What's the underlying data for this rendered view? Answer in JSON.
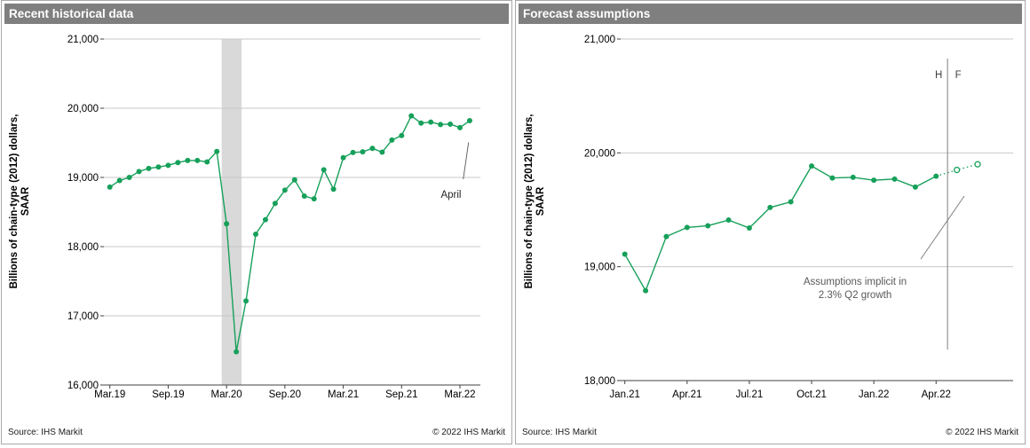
{
  "panels": {
    "left": {
      "title": "Recent historical data",
      "footer": {
        "source": "Source:  IHS Markit",
        "copyright": "© 2022  IHS Markit"
      }
    },
    "right": {
      "title": "Forecast assumptions",
      "footer": {
        "source": "Source:  IHS Markit",
        "copyright": "© 2022  IHS Markit"
      }
    }
  },
  "colors": {
    "header_bg": "#7f7f7f",
    "header_text": "#ffffff",
    "series_green": "#16a05a",
    "grid": "#c8c8c8",
    "axis": "#404040",
    "recession_band": "#d9d9d9",
    "annotation_gray": "#595959",
    "divider_gray": "#808080",
    "panel_border": "#a9a9a9"
  },
  "chart_data": [
    {
      "id": "historical",
      "type": "line",
      "title": "Recent historical data",
      "ylabel_line1": "Billions of chain-type (2012)  dollars,",
      "ylabel_line2": "SAAR",
      "ylim": [
        16000,
        21000
      ],
      "grid": true,
      "y_ticks": [
        16000,
        17000,
        18000,
        19000,
        20000,
        21000
      ],
      "y_tick_labels": [
        "16,000",
        "17,000",
        "18,000",
        "19,000",
        "20,000",
        "21,000"
      ],
      "x_tick_labels": [
        "Mar.19",
        "Sep.19",
        "Mar.20",
        "Sep.20",
        "Mar.21",
        "Sep.21",
        "Mar.22"
      ],
      "x_tick_month_indices": [
        0,
        6,
        12,
        18,
        24,
        30,
        36
      ],
      "x_months": [
        "Mar.19",
        "Apr.19",
        "May.19",
        "Jun.19",
        "Jul.19",
        "Aug.19",
        "Sep.19",
        "Oct.19",
        "Nov.19",
        "Dec.19",
        "Jan.20",
        "Feb.20",
        "Mar.20",
        "Apr.20",
        "May.20",
        "Jun.20",
        "Jul.20",
        "Aug.20",
        "Sep.20",
        "Oct.20",
        "Nov.20",
        "Dec.20",
        "Jan.21",
        "Feb.21",
        "Mar.21",
        "Apr.21",
        "May.21",
        "Jun.21",
        "Jul.21",
        "Aug.21",
        "Sep.21",
        "Oct.21",
        "Nov.21",
        "Dec.21",
        "Jan.22",
        "Feb.22",
        "Mar.22",
        "Apr.22"
      ],
      "values": [
        18860,
        18955,
        19000,
        19085,
        19130,
        19150,
        19175,
        19215,
        19245,
        19245,
        19225,
        19375,
        18330,
        16480,
        17215,
        18180,
        18390,
        18625,
        18815,
        18965,
        18730,
        18690,
        19110,
        18830,
        19285,
        19360,
        19370,
        19420,
        19365,
        19540,
        19605,
        19890,
        19785,
        19800,
        19765,
        19770,
        19720,
        19820
      ],
      "recession_band": {
        "start_month": 11.5,
        "end_month": 13.55
      },
      "annotation": {
        "text": "April"
      }
    },
    {
      "id": "forecast",
      "type": "line",
      "title": "Forecast assumptions",
      "ylabel_line1": "Billions of chain-type (2012)  dollars,",
      "ylabel_line2": "SAAR",
      "ylim": [
        18000,
        21000
      ],
      "grid": true,
      "y_ticks": [
        18000,
        19000,
        20000,
        21000
      ],
      "y_tick_labels": [
        "18,000",
        "19,000",
        "20,000",
        "21,000"
      ],
      "x_tick_labels": [
        "Jan.21",
        "Apr.21",
        "Jul.21",
        "Oct.21",
        "Jan.22",
        "Apr.22"
      ],
      "x_tick_month_indices": [
        0,
        3,
        6,
        9,
        12,
        15
      ],
      "x_months": [
        "Jan.21",
        "Feb.21",
        "Mar.21",
        "Apr.21",
        "May.21",
        "Jun.21",
        "Jul.21",
        "Aug.21",
        "Sep.21",
        "Oct.21",
        "Nov.21",
        "Dec.21",
        "Jan.22",
        "Feb.22",
        "Mar.22",
        "Apr.22",
        "May.22",
        "Jun.22"
      ],
      "values": [
        19110,
        18790,
        19265,
        19345,
        19360,
        19410,
        19340,
        19520,
        19570,
        19885,
        19780,
        19785,
        19760,
        19770,
        19700,
        19795,
        19850,
        19900
      ],
      "forecast_start_index": 16,
      "history_forecast_divider": {
        "month_position": 15.55,
        "history_label": "H",
        "forecast_label": "F"
      },
      "annotation": {
        "line1": "Assumptions implicit in",
        "line2": "2.3%  Q2 growth"
      }
    }
  ]
}
